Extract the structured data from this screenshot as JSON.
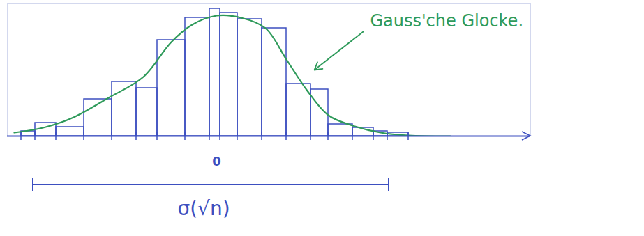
{
  "chart_data": {
    "type": "histogram",
    "bins": [
      -28,
      -26,
      -23,
      -19,
      -15,
      -11.5,
      -8.5,
      -4.5,
      -1,
      0.5,
      3,
      6.5,
      10,
      13.5,
      16,
      19.5,
      22.5,
      24.5,
      27.5
    ],
    "counts": [
      7,
      19,
      13,
      53,
      78,
      69,
      138,
      170,
      183,
      177,
      168,
      155,
      75,
      67,
      17,
      12,
      7,
      5
    ],
    "color": "#3d4fc0",
    "curve": {
      "x": [
        -29,
        -24.5,
        -20.5,
        -15.5,
        -10.5,
        -6.5,
        -3.5,
        0,
        3.5,
        7,
        10,
        13,
        16,
        19.5,
        23.5,
        27.5,
        33.5
      ],
      "y": [
        5,
        13,
        27,
        55,
        85,
        135,
        160,
        173,
        170,
        155,
        110,
        65,
        30,
        15,
        5,
        1,
        0
      ],
      "color": "#2e9a5a"
    },
    "annotations": [
      {
        "text": "Gauss'che Glocke.",
        "x": 22,
        "y": 165,
        "arrow_to": [
          14,
          95
        ],
        "color": "#2e9a5a"
      }
    ],
    "span": {
      "label": "σ(√n)",
      "from": -26.3,
      "to": 24.7
    },
    "xlim": [
      -30,
      45
    ],
    "ylim": [
      0,
      190
    ],
    "xticks": [
      0
    ],
    "tick_labels": "x"
  }
}
